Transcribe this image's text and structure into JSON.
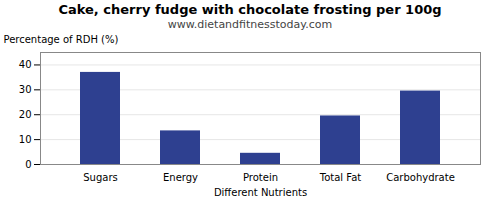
{
  "chart_data": {
    "type": "bar",
    "title": "Cake, cherry fudge with chocolate frosting per 100g",
    "subtitle": "www.dietandfitnesstoday.com",
    "xlabel": "Different Nutrients",
    "ylabel": "Percentage of RDH (%)",
    "categories": [
      "Sugars",
      "Energy",
      "Protein",
      "Total Fat",
      "Carbohydrate"
    ],
    "values": [
      37,
      13.5,
      4.5,
      19.5,
      29.5
    ],
    "color": "#2e4090",
    "ylim": [
      0,
      45
    ],
    "yticks": [
      0,
      10,
      20,
      30,
      40
    ],
    "grid": true
  }
}
